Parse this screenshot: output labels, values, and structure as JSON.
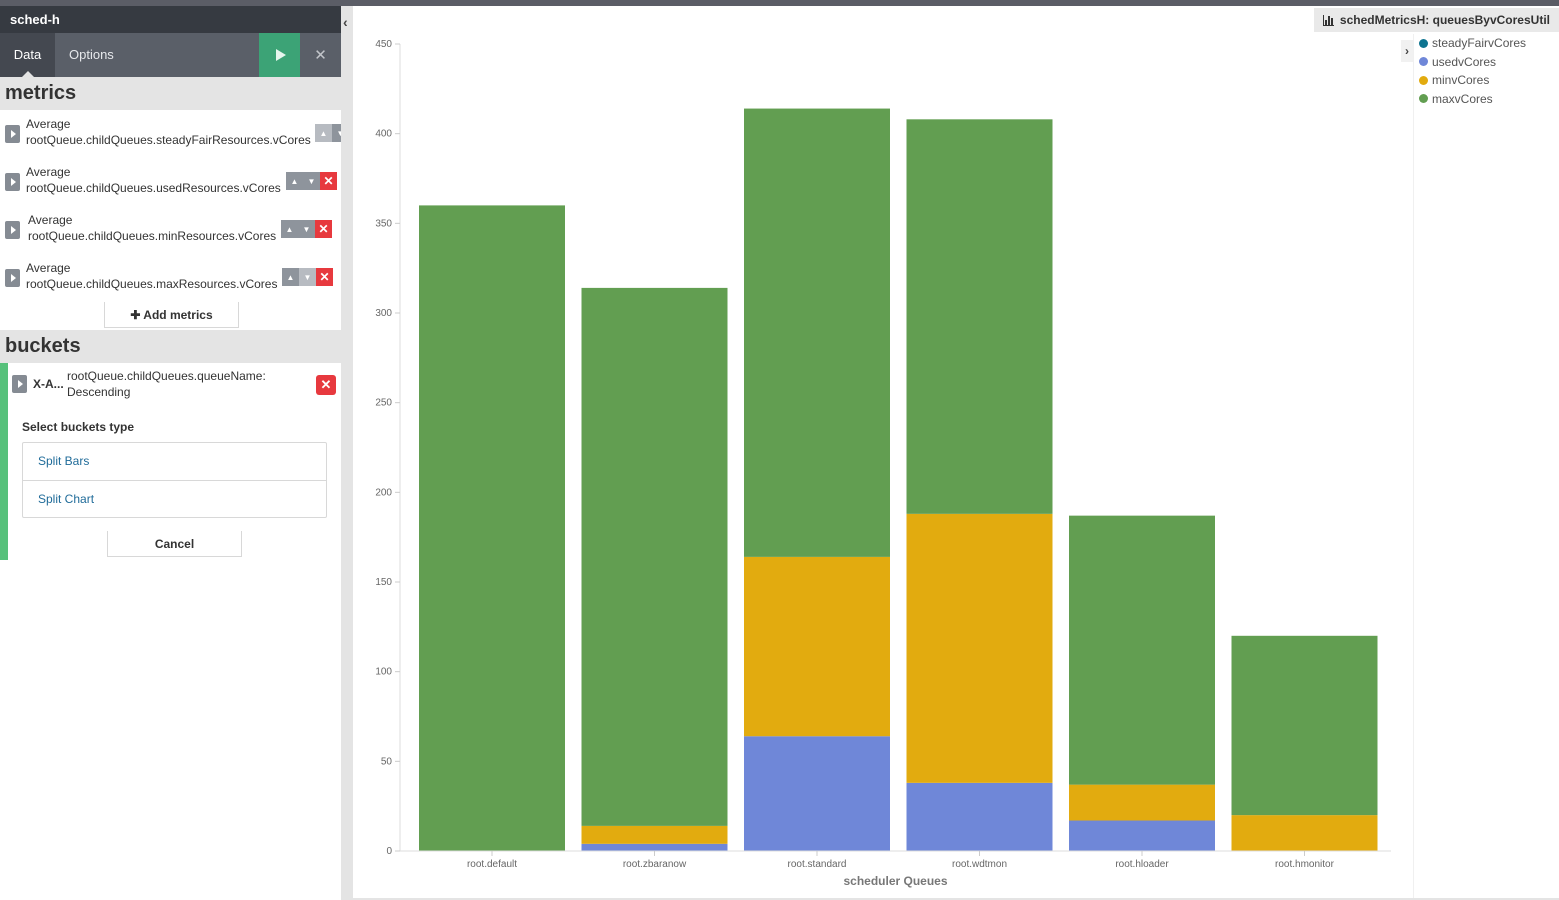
{
  "sidebar": {
    "title": "sched-h",
    "tabs": {
      "data": "Data",
      "options": "Options"
    },
    "metrics_header": "metrics",
    "metrics": [
      {
        "agg": "Average",
        "field": "rootQueue.childQueues.steadyFairResources.vCores"
      },
      {
        "agg": "Average",
        "field": "rootQueue.childQueues.usedResources.vCores"
      },
      {
        "agg": "Average",
        "field": "rootQueue.childQueues.minResources.vCores"
      },
      {
        "agg": "Average",
        "field": "rootQueue.childQueues.maxResources.vCores"
      }
    ],
    "add_metrics": "Add metrics",
    "buckets_header": "buckets",
    "bucket": {
      "agg": "X-A...",
      "desc_line1": "rootQueue.childQueues.queueName:",
      "desc_line2": "Descending"
    },
    "select_type_label": "Select buckets type",
    "bucket_types": [
      "Split Bars",
      "Split Chart"
    ],
    "cancel": "Cancel"
  },
  "chart_title": "schedMetricsH: queuesByvCoresUtil",
  "colors": {
    "steady": "#0e7490",
    "used": "#6f87d8",
    "min": "#e2ab0f",
    "max": "#629e51"
  },
  "chart_data": {
    "type": "bar",
    "stacked": true,
    "categories": [
      "root.default",
      "root.zbaranow",
      "root.standard",
      "root.wdtmon",
      "root.hloader",
      "root.hmonitor"
    ],
    "series": [
      {
        "name": "steadyFairvCores",
        "values": [
          0,
          0,
          0,
          0,
          0,
          0
        ]
      },
      {
        "name": "usedvCores",
        "values": [
          0,
          4,
          64,
          38,
          17,
          0
        ]
      },
      {
        "name": "minvCores",
        "values": [
          0,
          10,
          100,
          150,
          20,
          20
        ]
      },
      {
        "name": "maxvCores",
        "values": [
          360,
          300,
          250,
          220,
          150,
          100
        ]
      }
    ],
    "xlabel": "scheduler Queues",
    "ylabel": "",
    "ylim": [
      0,
      450
    ],
    "yticks": [
      0,
      50,
      100,
      150,
      200,
      250,
      300,
      350,
      400,
      450
    ],
    "legend_position": "right"
  }
}
